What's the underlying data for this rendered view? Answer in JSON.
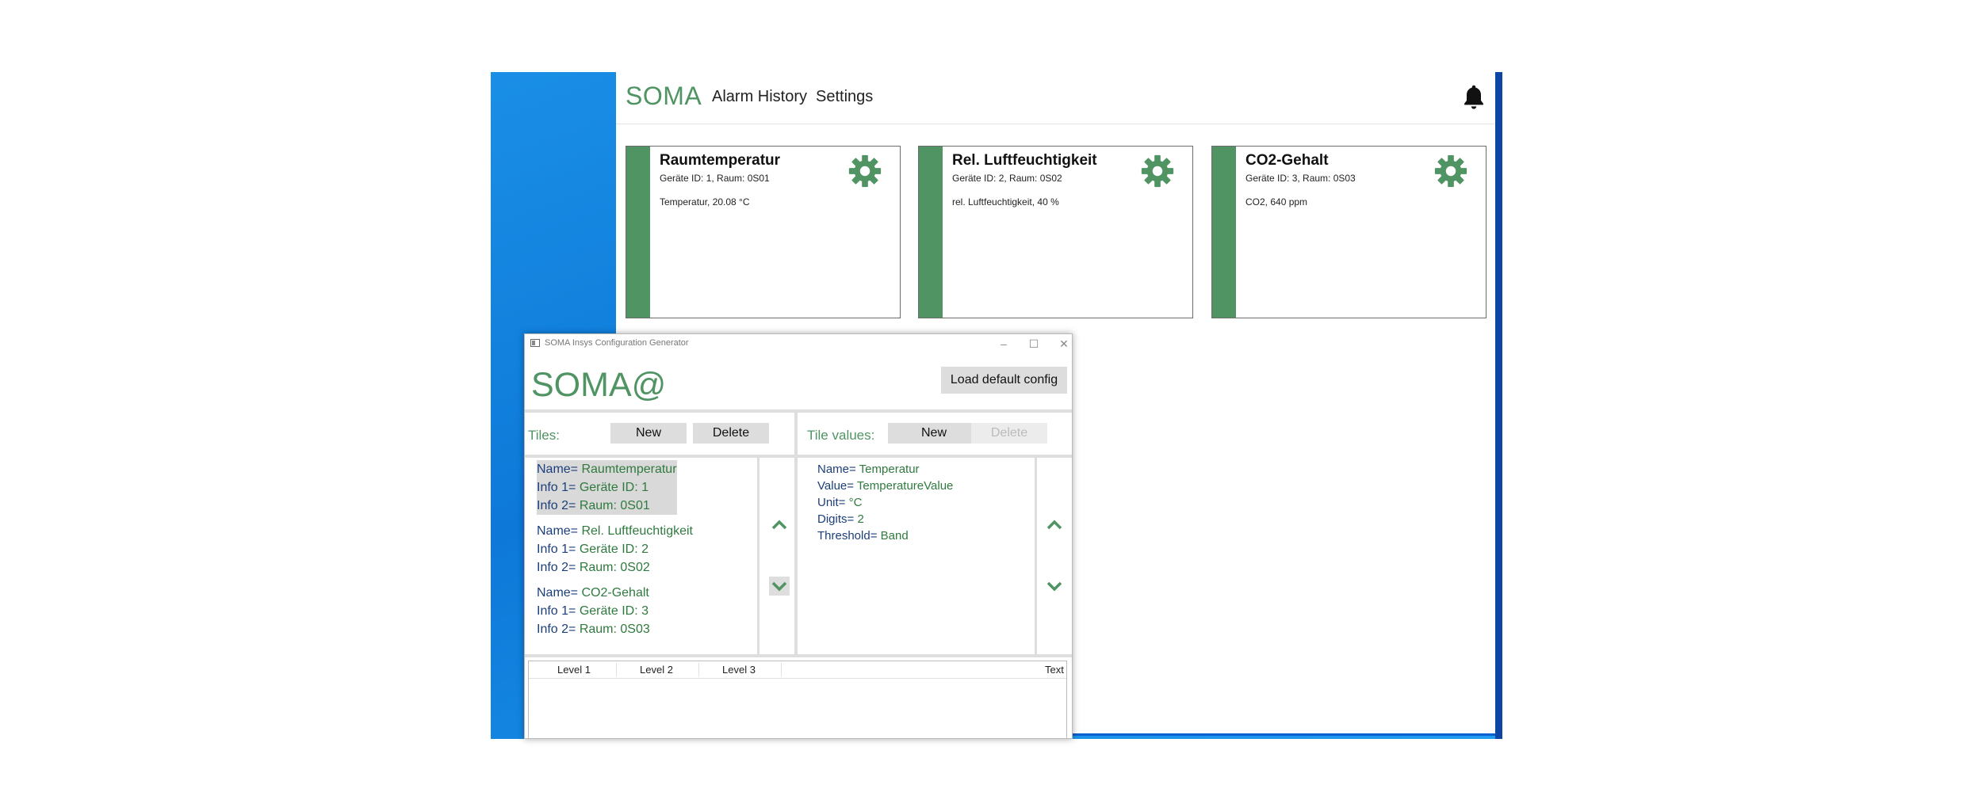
{
  "web": {
    "logo": "SOMA",
    "nav": {
      "alarm_history": "Alarm History",
      "settings": "Settings"
    },
    "tiles": [
      {
        "title": "Raumtemperatur",
        "info": "Geräte ID: 1, Raum: 0S01",
        "value": "Temperatur, 20.08 °C"
      },
      {
        "title": "Rel. Luftfeuchtigkeit",
        "info": "Geräte ID: 2, Raum: 0S02",
        "value": "rel. Luftfeuchtigkeit, 40 %"
      },
      {
        "title": "CO2-Gehalt",
        "info": "Geräte ID: 3, Raum: 0S03",
        "value": "CO2, 640 ppm"
      }
    ]
  },
  "config": {
    "window_title": "SOMA Insys Configuration Generator",
    "logo": "SOMA@",
    "load_default": "Load default config",
    "tiles_label": "Tiles:",
    "tile_values_label": "Tile values:",
    "new_label": "New",
    "delete_label": "Delete",
    "tile_list": [
      {
        "lines": [
          {
            "k": "Name= ",
            "v": "Raumtemperatur"
          },
          {
            "k": "Info 1= ",
            "v": "Geräte ID: 1"
          },
          {
            "k": "Info 2= ",
            "v": "Raum: 0S01"
          }
        ]
      },
      {
        "lines": [
          {
            "k": "Name= ",
            "v": "Rel. Luftfeuchtigkeit"
          },
          {
            "k": "Info 1= ",
            "v": "Geräte ID: 2"
          },
          {
            "k": "Info 2= ",
            "v": "Raum: 0S02"
          }
        ]
      },
      {
        "lines": [
          {
            "k": "Name= ",
            "v": "CO2-Gehalt"
          },
          {
            "k": "Info 1= ",
            "v": "Geräte ID: 3"
          },
          {
            "k": "Info 2= ",
            "v": "Raum: 0S03"
          }
        ]
      }
    ],
    "value_list": [
      {
        "k": "Name= ",
        "v": "Temperatur"
      },
      {
        "k": "Value= ",
        "v": "TemperatureValue"
      },
      {
        "k": "Unit= ",
        "v": "°C"
      },
      {
        "k": "Digits= ",
        "v": "2"
      },
      {
        "k": "Threshold= ",
        "v": "Band"
      }
    ],
    "level_headers": [
      "Level 1",
      "Level 2",
      "Level 3",
      "Text"
    ]
  },
  "colors": {
    "brand_green": "#509463",
    "key_blue": "#1c3f7a",
    "value_green": "#2f7a3e",
    "desktop_blue": "#0d78d8"
  },
  "icons": {
    "tile_settings": "gear-icon",
    "notifications": "bell-icon",
    "move_up": "chevron-up-icon",
    "move_down": "chevron-down-icon"
  }
}
